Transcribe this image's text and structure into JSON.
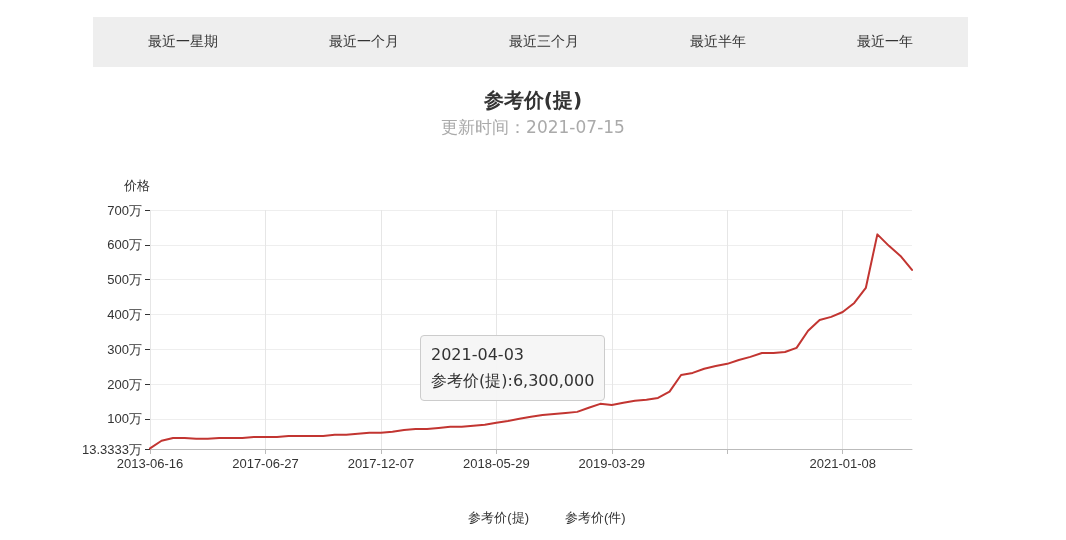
{
  "chart_data": {
    "type": "line",
    "title": "参考价(提)",
    "subtitle": "更新时间：2021-07-15",
    "ylabel": "价格",
    "annotations": [
      "最近一星期",
      "最近一个月",
      "最近三个月",
      "最近半年",
      "最近一年",
      "2021-04-03\n参考价(提):6,300,000"
    ],
    "categories": [
      "2013-06-16",
      null,
      null,
      null,
      null,
      null,
      null,
      null,
      null,
      null,
      "2017-06-27",
      null,
      null,
      null,
      null,
      null,
      null,
      null,
      null,
      null,
      "2017-12-07",
      null,
      null,
      null,
      null,
      null,
      null,
      null,
      null,
      null,
      "2018-05-29",
      null,
      null,
      null,
      null,
      null,
      null,
      null,
      null,
      null,
      "2019-03-29",
      null,
      null,
      null,
      null,
      null,
      null,
      null,
      null,
      null,
      null,
      null,
      null,
      null,
      null,
      null,
      null,
      null,
      null,
      null,
      "2021-01-08",
      null,
      null,
      null,
      null,
      null,
      null
    ],
    "series": [
      {
        "name": "参考价(提)",
        "color": "#c23531",
        "values": [
          15,
          37,
          45,
          45,
          43,
          43,
          45,
          45,
          45,
          48,
          48,
          48,
          51,
          51,
          51,
          51,
          54,
          54,
          57,
          60,
          60,
          63,
          68,
          71,
          71,
          74,
          77,
          77,
          80,
          83,
          89,
          94,
          100,
          106,
          111,
          114,
          117,
          120,
          132,
          143,
          140,
          146,
          152,
          155,
          160,
          178,
          226,
          232,
          244,
          252,
          258,
          269,
          278,
          289,
          289,
          292,
          304,
          353,
          384,
          393,
          407,
          433,
          476,
          630,
          597,
          568,
          528
        ]
      },
      {
        "name": "参考价(件)",
        "color": "#333333",
        "values": [
          null,
          null,
          null,
          null,
          null,
          null,
          null,
          null,
          null,
          null,
          null,
          null,
          null,
          null,
          null,
          null,
          null,
          null,
          null,
          null,
          null,
          null,
          null,
          null,
          null,
          null,
          null,
          null,
          null,
          null,
          null,
          null,
          null,
          null,
          null,
          null,
          null,
          null,
          null,
          null,
          null,
          null,
          null,
          null,
          null,
          null,
          null,
          null,
          null,
          null,
          null,
          null,
          null,
          null,
          null,
          null,
          null,
          null,
          null,
          null,
          null,
          null,
          null,
          null,
          null,
          null,
          null
        ]
      }
    ],
    "ylim": [
      13.3333,
      700
    ],
    "yticks": [
      {
        "value": 13.3333,
        "label": "13.3333万"
      },
      {
        "value": 100,
        "label": "100万"
      },
      {
        "value": 200,
        "label": "200万"
      },
      {
        "value": 300,
        "label": "300万"
      },
      {
        "value": 400,
        "label": "400万"
      },
      {
        "value": 500,
        "label": "500万"
      },
      {
        "value": 600,
        "label": "600万"
      },
      {
        "value": 700,
        "label": "700万"
      }
    ],
    "grid": true,
    "legend": "bottom",
    "marker": "none",
    "line_style": "solid"
  }
}
